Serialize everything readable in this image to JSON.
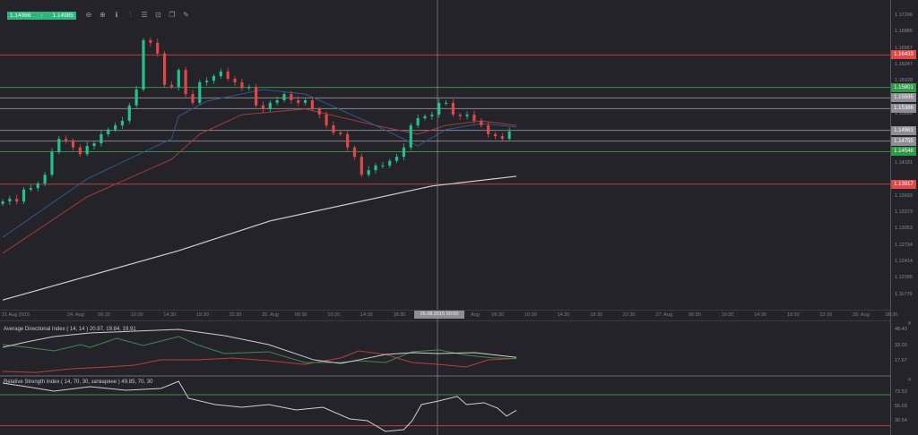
{
  "quote": {
    "bid": "1.14966",
    "ask": "1.14985",
    "arrow_icon": "arrow-up-icon"
  },
  "toolbar": [
    {
      "icon": "zoom-out-icon",
      "glyph": "⊖"
    },
    {
      "icon": "zoom-in-icon",
      "glyph": "⊕"
    },
    {
      "icon": "timeframe-icon",
      "glyph": "ℹ"
    },
    {
      "icon": "chart-type-icon",
      "glyph": "⫶"
    },
    {
      "icon": "indicators-icon",
      "glyph": "☰"
    },
    {
      "icon": "screenshot-icon",
      "glyph": "⊡"
    },
    {
      "icon": "templates-icon",
      "glyph": "❐"
    },
    {
      "icon": "draw-icon",
      "glyph": "✎"
    }
  ],
  "colors": {
    "bull": "#26c08a",
    "bear": "#e04848",
    "ma_fast": "#2e5a8a",
    "ma_mid": "#a83a3a",
    "ma_slow": "#d0d0d0",
    "green_level": "#3e8a4e",
    "red_level": "#b8403a",
    "gray_level": "#8a8a90"
  },
  "price_axis": {
    "labels": [
      "1.17206",
      "1.16886",
      "1.16567",
      "1.16247",
      "1.15928",
      "1.15289",
      "1.14331",
      "1.13692",
      "1.13373",
      "1.13053",
      "1.12734",
      "1.12414",
      "1.12095",
      "1.11776"
    ],
    "levels": [
      {
        "price": "1.16433",
        "kind": "red"
      },
      {
        "price": "1.15801",
        "kind": "green"
      },
      {
        "price": "1.15595",
        "kind": "gray"
      },
      {
        "price": "1.15386",
        "kind": "gray"
      },
      {
        "price": "1.14963",
        "kind": "gray"
      },
      {
        "price": "1.14755",
        "kind": "gray"
      },
      {
        "price": "1.14548",
        "kind": "green"
      },
      {
        "price": "1.13917",
        "kind": "red"
      }
    ]
  },
  "time_axis": {
    "labels": [
      "21 Aug 2015",
      "24. Aug",
      "06:30",
      "10:30",
      "14:30",
      "18:30",
      "22:30",
      "25. Aug",
      "06:30",
      "10:30",
      "14:30",
      "18:30",
      "",
      "Aug",
      "06:30",
      "10:30",
      "14:30",
      "18:30",
      "22:30",
      "27. Aug",
      "06:30",
      "10:30",
      "14:30",
      "18:30",
      "22:30",
      "28. Aug",
      "06:30"
    ],
    "crosshair_label": "26.08.2015 00:00"
  },
  "candles": {
    "closes": [
      1.1358,
      1.1363,
      1.1358,
      1.1381,
      1.1384,
      1.1393,
      1.141,
      1.1454,
      1.148,
      1.1477,
      1.1463,
      1.145,
      1.1466,
      1.1471,
      1.1489,
      1.1498,
      1.1506,
      1.1515,
      1.1545,
      1.1576,
      1.1672,
      1.1667,
      1.1646,
      1.1585,
      1.1581,
      1.1614,
      1.1567,
      1.155,
      1.159,
      1.1593,
      1.1602,
      1.1611,
      1.1597,
      1.159,
      1.1579,
      1.1581,
      1.1545,
      1.1538,
      1.155,
      1.1555,
      1.1567,
      1.1555,
      1.155,
      1.1555,
      1.1538,
      1.1527,
      1.1506,
      1.1492,
      1.1489,
      1.1463,
      1.1445,
      1.141,
      1.1419,
      1.1428,
      1.1428,
      1.1437,
      1.1445,
      1.1463,
      1.1506,
      1.152,
      1.1524,
      1.1527,
      1.155,
      1.155,
      1.1527,
      1.1524,
      1.1527,
      1.1515,
      1.1506,
      1.1489,
      1.1485,
      1.148,
      1.1494
    ],
    "ma_fast": [
      [
        0,
        1.1288
      ],
      [
        12,
        1.1402
      ],
      [
        24,
        1.148
      ],
      [
        25,
        1.1524
      ],
      [
        29,
        1.1553
      ],
      [
        37,
        1.1576
      ],
      [
        43,
        1.1567
      ],
      [
        53,
        1.1506
      ],
      [
        59,
        1.1466
      ],
      [
        63,
        1.1498
      ],
      [
        68,
        1.151
      ],
      [
        73,
        1.1503
      ]
    ],
    "ma_mid": [
      [
        0,
        1.1257
      ],
      [
        12,
        1.1367
      ],
      [
        24,
        1.144
      ],
      [
        28,
        1.1489
      ],
      [
        34,
        1.1527
      ],
      [
        43,
        1.1538
      ],
      [
        53,
        1.1506
      ],
      [
        59,
        1.1489
      ],
      [
        63,
        1.1506
      ],
      [
        68,
        1.1515
      ],
      [
        73,
        1.1506
      ]
    ],
    "ma_slow": [
      [
        0,
        1.1166
      ],
      [
        25,
        1.1262
      ],
      [
        38,
        1.132
      ],
      [
        61,
        1.1388
      ],
      [
        73,
        1.1407
      ]
    ]
  },
  "adx": {
    "title": "Average Directional Index ( 14, 14 ) 20.97, 19.84, 19.91",
    "scale": [
      "48.40",
      "33.03",
      "17.67"
    ],
    "adx": [
      [
        0,
        30.8
      ],
      [
        3.4,
        36.1
      ],
      [
        7.3,
        41.4
      ],
      [
        12.4,
        44.9
      ],
      [
        18.7,
        46.6
      ],
      [
        25,
        48.4
      ],
      [
        31.5,
        42.3
      ],
      [
        37.8,
        33.5
      ],
      [
        44.2,
        18.5
      ],
      [
        48,
        15.0
      ],
      [
        50.6,
        18.5
      ],
      [
        54.4,
        23.8
      ],
      [
        58.2,
        25.6
      ],
      [
        62,
        24.7
      ],
      [
        67.1,
        25.6
      ],
      [
        73,
        21.0
      ]
    ],
    "plus_di": [
      [
        0,
        33.5
      ],
      [
        3.4,
        30.8
      ],
      [
        7.3,
        27.3
      ],
      [
        11.1,
        33.5
      ],
      [
        12.4,
        30.8
      ],
      [
        16.2,
        39.6
      ],
      [
        20,
        32.6
      ],
      [
        25,
        41.4
      ],
      [
        27.6,
        33.5
      ],
      [
        31.5,
        24.7
      ],
      [
        37.8,
        26.5
      ],
      [
        42.9,
        15.9
      ],
      [
        48,
        15.9
      ],
      [
        50.6,
        17.7
      ],
      [
        54.4,
        15.9
      ],
      [
        58.2,
        26.5
      ],
      [
        62,
        28.3
      ],
      [
        65.9,
        23.0
      ],
      [
        69.7,
        20.4
      ],
      [
        73,
        19.8
      ]
    ],
    "minus_di": [
      [
        0,
        7.1
      ],
      [
        4.7,
        6.2
      ],
      [
        9.8,
        9.8
      ],
      [
        14.9,
        11.5
      ],
      [
        18.7,
        13.3
      ],
      [
        22.5,
        18.5
      ],
      [
        27.6,
        18.5
      ],
      [
        32.7,
        20.3
      ],
      [
        37.8,
        17.7
      ],
      [
        42.9,
        14.1
      ],
      [
        48,
        20.3
      ],
      [
        50.6,
        27.3
      ],
      [
        54.4,
        23.8
      ],
      [
        58.2,
        15.9
      ],
      [
        62,
        14.1
      ],
      [
        65.9,
        11.5
      ],
      [
        69,
        18.5
      ],
      [
        73,
        19.9
      ]
    ]
  },
  "rsi": {
    "title": "Relative Strength Index ( 14, 70, 30, затваряне ) 49.85, 70, 30",
    "scale": [
      "73.53",
      "55.03",
      "36.54"
    ],
    "levels": [
      70,
      30
    ],
    "values": [
      [
        0,
        85.1
      ],
      [
        3.4,
        80.5
      ],
      [
        7.3,
        74.7
      ],
      [
        12.4,
        80.5
      ],
      [
        17.5,
        75.8
      ],
      [
        22.5,
        78.2
      ],
      [
        25,
        87.4
      ],
      [
        26.4,
        65.5
      ],
      [
        30.2,
        57.4
      ],
      [
        34,
        53.9
      ],
      [
        37.8,
        57.4
      ],
      [
        41.7,
        50.4
      ],
      [
        45.5,
        53.9
      ],
      [
        49.3,
        38.9
      ],
      [
        51.8,
        36.6
      ],
      [
        54.4,
        22.7
      ],
      [
        57,
        25.0
      ],
      [
        58.2,
        36.6
      ],
      [
        59.5,
        57.4
      ],
      [
        62,
        62.1
      ],
      [
        64.6,
        67.9
      ],
      [
        65.9,
        57.4
      ],
      [
        68.4,
        59.7
      ],
      [
        70.3,
        52.8
      ],
      [
        71.6,
        42.4
      ],
      [
        73,
        49.85
      ]
    ]
  }
}
